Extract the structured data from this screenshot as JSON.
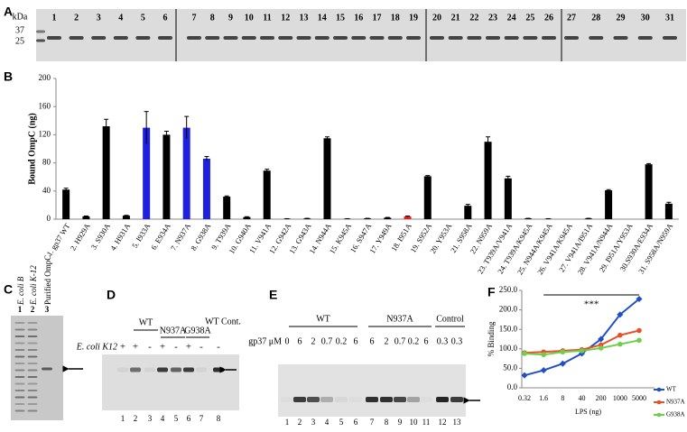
{
  "panel_letters": [
    "A",
    "B",
    "C",
    "D",
    "E",
    "F"
  ],
  "panel_a": {
    "kda_label": "kDa",
    "markers": [
      "37",
      "25"
    ],
    "lanes": [
      "1",
      "2",
      "3",
      "4",
      "5",
      "6",
      "7",
      "8",
      "9",
      "10",
      "11",
      "12",
      "13",
      "14",
      "15",
      "16",
      "17",
      "18",
      "19",
      "20",
      "21",
      "22",
      "23",
      "24",
      "25",
      "26",
      "27",
      "28",
      "29",
      "30",
      "31"
    ]
  },
  "chart_data": [
    {
      "type": "bar",
      "y_label": "Bound OmpC (ng)",
      "categories": [
        "1. gp37 WT",
        "2. H929A",
        "3. S930A",
        "4. H931A",
        "5. I933A",
        "6. E934A",
        "7. N937A",
        "8. G938A",
        "9. T939A",
        "10. G940A",
        "11. V941A",
        "12. G942A",
        "13. G943A",
        "14. N944A",
        "15. K945A",
        "16. S947A",
        "17. Y949A",
        "18. I951A",
        "19. S952A",
        "20. Y953A",
        "21. S958A",
        "22. N959A",
        "23. T939A/V941A",
        "24. T939A/K945A",
        "25. N944A/K945A",
        "26. V941A/K945A",
        "27. V941A/I951A",
        "28. V941A/N944A",
        "29. I951A/Y953A",
        "30.S930A/E934A",
        "31. S958A/N959A"
      ],
      "values": [
        42,
        4,
        132,
        5,
        130,
        120,
        130,
        86,
        32,
        3,
        69,
        0.5,
        1,
        115,
        0.5,
        1,
        2,
        4,
        61,
        0,
        19,
        110,
        58,
        1,
        0.5,
        0,
        1,
        41,
        0,
        78,
        22
      ],
      "errors": [
        2,
        0.5,
        10,
        0.5,
        23,
        5,
        16,
        3,
        1,
        0.5,
        2,
        0.2,
        0.2,
        2,
        0.2,
        0.2,
        0.5,
        0.5,
        1,
        0,
        2,
        7,
        3,
        0.2,
        0.2,
        0,
        0.2,
        1,
        0,
        1,
        2
      ],
      "colors": [
        "#000000",
        "#000000",
        "#000000",
        "#000000",
        "#1f1fe0",
        "#000000",
        "#1f1fe0",
        "#1f1fe0",
        "#000000",
        "#000000",
        "#000000",
        "#000000",
        "#000000",
        "#000000",
        "#000000",
        "#000000",
        "#000000",
        "#e02020",
        "#000000",
        "#000000",
        "#000000",
        "#000000",
        "#000000",
        "#000000",
        "#000000",
        "#000000",
        "#000000",
        "#000000",
        "#000000",
        "#000000",
        "#000000"
      ],
      "ylim": [
        0,
        200
      ],
      "yticks": [
        0,
        40,
        80,
        120,
        160,
        200
      ]
    },
    {
      "type": "line",
      "x_label": "LPS (ng)",
      "y_label": "% Binding",
      "annotation": "***",
      "categories": [
        "0.32",
        "1.6",
        "8",
        "40",
        "200",
        "1000",
        "5000"
      ],
      "series": [
        {
          "name": "WT",
          "color": "#2050c8",
          "values": [
            32,
            45,
            62,
            88,
            125,
            188,
            228
          ]
        },
        {
          "name": "N937A",
          "color": "#e8502a",
          "values": [
            90,
            92,
            95,
            98,
            110,
            135,
            147
          ]
        },
        {
          "name": "G938A",
          "color": "#6fcf4c",
          "values": [
            88,
            85,
            92,
            95,
            102,
            112,
            122
          ]
        }
      ],
      "ylim": [
        0,
        250
      ],
      "yticks": [
        {
          "value": 0,
          "label": "0.0"
        },
        {
          "value": 50,
          "label": "50.0"
        },
        {
          "value": 100,
          "label": "100.0"
        },
        {
          "value": 150,
          "label": "150.0"
        },
        {
          "value": 200,
          "label": "200.0"
        },
        {
          "value": 250,
          "label": "250.0"
        }
      ]
    }
  ],
  "panel_c": {
    "lane_labels": [
      "E. coli B",
      "E. coli K-12",
      "Purified OmpC"
    ],
    "lanes": [
      "1",
      "2",
      "3"
    ]
  },
  "panel_d": {
    "row_label": "E. coli K12",
    "groups": [
      "WT",
      "N937A",
      "G938A",
      "WT Cont."
    ],
    "signs": [
      "+",
      "+",
      "-",
      "+",
      "-",
      "+",
      "-",
      "-"
    ],
    "lanes": [
      "1",
      "2",
      "3",
      "4",
      "5",
      "6",
      "7",
      "8"
    ]
  },
  "panel_e": {
    "conc_label": "gp37 μM",
    "groups": [
      "WT",
      "N937A",
      "Control"
    ],
    "conc": [
      "0",
      "6",
      "2",
      "0.7",
      "0.2",
      "6",
      "6",
      "2",
      "0.7",
      "0.2",
      "6",
      "0.3",
      "0.3"
    ],
    "lanes": [
      "1",
      "2",
      "3",
      "4",
      "5",
      "6",
      "7",
      "8",
      "9",
      "10",
      "11",
      "12",
      "13"
    ]
  }
}
